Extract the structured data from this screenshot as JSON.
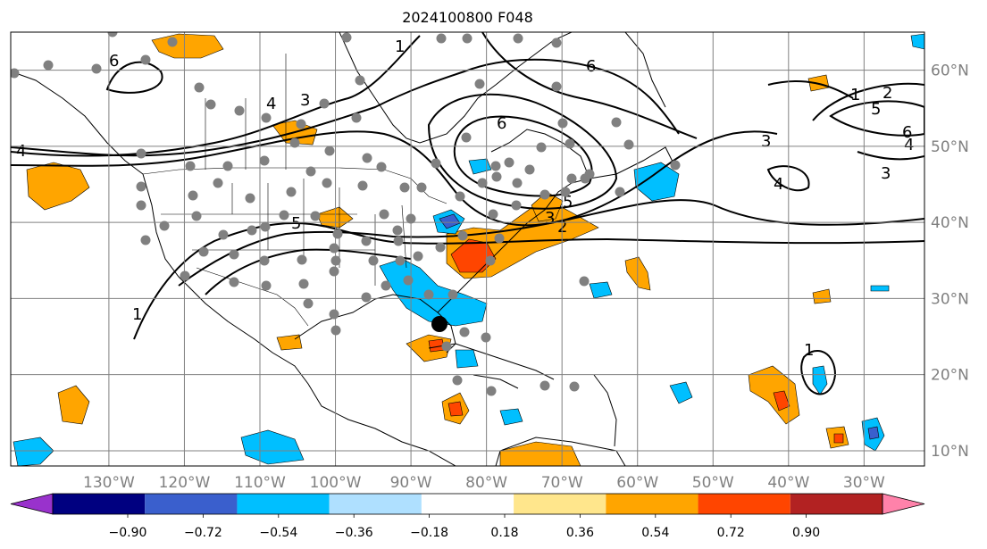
{
  "title": "2024100800 F048",
  "map": {
    "lon_range": [
      -143,
      -22
    ],
    "lat_range": [
      8,
      65
    ],
    "lon_ticks": [
      {
        "lon": -130,
        "label": "130°W"
      },
      {
        "lon": -120,
        "label": "120°W"
      },
      {
        "lon": -110,
        "label": "110°W"
      },
      {
        "lon": -100,
        "label": "100°W"
      },
      {
        "lon": -90,
        "label": "90°W"
      },
      {
        "lon": -80,
        "label": "80°W"
      },
      {
        "lon": -70,
        "label": "70°W"
      },
      {
        "lon": -60,
        "label": "60°W"
      },
      {
        "lon": -50,
        "label": "50°W"
      },
      {
        "lon": -40,
        "label": "40°W"
      },
      {
        "lon": -30,
        "label": "30°W"
      }
    ],
    "lat_ticks": [
      {
        "lat": 60,
        "label": "60°N"
      },
      {
        "lat": 50,
        "label": "50°N"
      },
      {
        "lat": 40,
        "label": "40°N"
      },
      {
        "lat": 30,
        "label": "30°N"
      },
      {
        "lat": 20,
        "label": "20°N"
      },
      {
        "lat": 10,
        "label": "10°N"
      }
    ],
    "grid": true,
    "contour_labels": [
      "6",
      "4",
      "3",
      "2",
      "1",
      "5"
    ],
    "marker_color": "#808080",
    "storm_marker_color": "#000000"
  },
  "colorbar": {
    "orientation": "horizontal",
    "extend": "both",
    "colors": [
      "#9932cc",
      "#000080",
      "#3a5fcd",
      "#00bfff",
      "#afe0ff",
      "#ffffff",
      "#ffe68c",
      "#ffa500",
      "#ff4500",
      "#b22222",
      "#ff82aa"
    ],
    "tick_labels": [
      "−0.90",
      "−0.72",
      "−0.54",
      "−0.36",
      "−0.18",
      "0.18",
      "0.36",
      "0.54",
      "0.72",
      "0.90"
    ]
  }
}
